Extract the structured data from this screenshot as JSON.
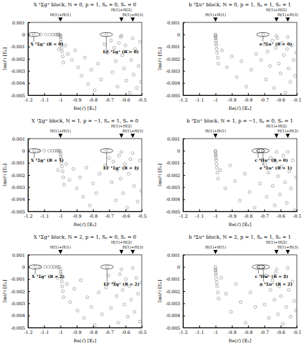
{
  "chart_data": [
    {
      "type": "scatter",
      "title": "X ¹Σg⁺ block, N = 0, p = 1, Sₚ = 0, Sₑ = 0",
      "x_label": "Re(ℰ) [Eₕ]",
      "y_label": "Im(ℰ) [Eₕ]",
      "xlim": [
        -1.2,
        -0.5
      ],
      "xticks": [
        -1.2,
        -1.1,
        -1,
        -0.9,
        -0.8,
        -0.7,
        -0.6,
        -0.5
      ],
      "ylim": [
        -0.005,
        0.001
      ],
      "yticks": [
        0.001,
        0,
        -0.001,
        -0.002,
        -0.003,
        -0.004,
        -0.005
      ],
      "series": [
        {
          "color": "#444444",
          "marker": "circle",
          "x": [
            -1.164,
            -1.12,
            -1.09,
            -1.065,
            -1.045,
            -1.03,
            -1.018,
            -1.01,
            -1.004,
            -1.0,
            -0.999,
            -0.998,
            -0.997,
            -0.995,
            -0.993,
            -0.99,
            -0.986,
            -0.982,
            -1.01,
            -0.97,
            -0.955,
            -0.93,
            -0.91,
            -0.89,
            -0.87,
            -0.85,
            -0.83,
            -0.81,
            -0.79,
            -0.77,
            -0.75,
            -0.7178,
            -0.73,
            -0.71,
            -0.69,
            -0.68,
            -0.67,
            -0.66,
            -0.65,
            -0.64,
            -0.63,
            -0.625,
            -0.62,
            -0.61,
            -0.6,
            -0.595,
            -0.585,
            -0.575,
            -0.565,
            -0.556,
            -0.55,
            -0.54,
            -0.53,
            -0.52,
            -0.51,
            -0.505
          ],
          "values": [
            0,
            0,
            0,
            0,
            0,
            0,
            0,
            0,
            0,
            -0.0001,
            -0.0002,
            -0.0004,
            -0.0006,
            -0.0008,
            -0.0011,
            -0.0014,
            -0.0018,
            -0.0023,
            -0.0012,
            -0.0009,
            -0.0016,
            -0.0021,
            -0.0013,
            -0.0027,
            -0.0034,
            -0.0019,
            -0.0041,
            -0.0029,
            -0.0046,
            -0.0024,
            -0.0037,
            0,
            -0.0008,
            -0.0015,
            -0.0005,
            -0.0031,
            -0.0011,
            -0.0022,
            -0.0043,
            -0.0007,
            -0.0002,
            -0.0001,
            -0.0017,
            -0.0028,
            -0.0009,
            -0.0038,
            -0.0014,
            -0.0048,
            -0.0021,
            -0.0003,
            -0.0033,
            -0.0012,
            -0.0044,
            -0.0026,
            -0.0006,
            -0.0039
          ]
        }
      ],
      "thresholds": [
        {
          "label": "H(1)+H(1)",
          "x": -1.0
        },
        {
          "label": "H(1)+H(2)",
          "x": -0.625
        },
        {
          "label": "H(1)+H(3)",
          "x": -0.5556
        }
      ],
      "annotations": [
        {
          "text": "X ¹Σg⁺ (R = 0)",
          "x": -1.164,
          "y": 0
        },
        {
          "text": "EF ¹Σg⁺ (R = 0)",
          "x": -0.7178,
          "y": 0
        }
      ]
    },
    {
      "type": "scatter",
      "title": "b ³Σu⁺ block, N = 0, p = 1, Sₚ = 1, Sₑ = 1",
      "x_label": "Re(ℰ) [Eₕ]",
      "y_label": "Im(ℰ) [Eₕ]",
      "xlim": [
        -1.2,
        -0.5
      ],
      "xticks": [
        -1.2,
        -1.1,
        -1,
        -0.9,
        -0.8,
        -0.7,
        -0.6,
        -0.5
      ],
      "ylim": [
        -0.005,
        0.001
      ],
      "yticks": [
        0.001,
        0,
        -0.001,
        -0.002,
        -0.003,
        -0.004,
        -0.005
      ],
      "series": [
        {
          "color": "#444444",
          "marker": "circle",
          "x": [
            -1.0,
            -1.0,
            -0.999,
            -0.999,
            -0.998,
            -0.997,
            -0.995,
            -0.993,
            -0.99,
            -0.986,
            -0.982,
            -0.96,
            -0.93,
            -0.9,
            -0.87,
            -0.84,
            -0.81,
            -0.78,
            -0.75,
            -0.708,
            -0.72,
            -0.7,
            -0.69,
            -0.68,
            -0.665,
            -0.65,
            -0.64,
            -0.63,
            -0.625,
            -0.62,
            -0.61,
            -0.6,
            -0.59,
            -0.58,
            -0.57,
            -0.56,
            -0.556,
            -0.55,
            -0.54,
            -0.53,
            -0.52,
            -0.51,
            -0.503
          ],
          "values": [
            0,
            -0.0001,
            -0.0002,
            -0.0003,
            -0.0005,
            -0.0007,
            -0.0009,
            -0.0012,
            -0.0015,
            -0.0019,
            -0.0024,
            -0.0013,
            -0.0027,
            -0.0018,
            -0.0035,
            -0.0022,
            -0.0043,
            -0.0029,
            -0.0016,
            0,
            -0.0021,
            -0.0008,
            -0.0037,
            -0.0014,
            -0.0026,
            -0.0005,
            -0.0044,
            -0.0011,
            -0.0001,
            -0.0003,
            -0.0024,
            -0.0032,
            -0.0007,
            -0.0017,
            -0.0048,
            -0.0012,
            -0.0002,
            -0.0028,
            -0.0039,
            -0.0009,
            -0.0021,
            -0.0034,
            -0.0015
          ]
        }
      ],
      "thresholds": [
        {
          "label": "H(1)+H(1)",
          "x": -1.0
        },
        {
          "label": "H(1)+H(2)",
          "x": -0.625
        },
        {
          "label": "H(1)+H(3)",
          "x": -0.5556
        }
      ],
      "annotations": [
        {
          "text": "e ³Σu⁺ (R = 0)",
          "x": -0.708,
          "y": 0
        }
      ]
    },
    {
      "type": "scatter",
      "title": "X ¹Σg⁺ block, N = 1, p = −1, Sₚ = 1, Sₑ = 0",
      "x_label": "Re(ℰ) [Eₕ]",
      "y_label": "Im(ℰ) [Eₕ]",
      "xlim": [
        -1.2,
        -0.5
      ],
      "xticks": [
        -1.2,
        -1.1,
        -1,
        -0.9,
        -0.8,
        -0.7,
        -0.6,
        -0.5
      ],
      "ylim": [
        -0.005,
        0.001
      ],
      "yticks": [
        0.001,
        0,
        -0.001,
        -0.002,
        -0.003,
        -0.004,
        -0.005
      ],
      "series": [
        {
          "color": "#444444",
          "marker": "circle",
          "x": [
            -1.1612,
            -1.13,
            -1.1,
            -1.07,
            -1.05,
            -1.035,
            -1.022,
            -1.012,
            -1.005,
            -1.0,
            -0.999,
            -0.998,
            -0.996,
            -0.994,
            -0.991,
            -0.987,
            -0.983,
            -0.978,
            -1.015,
            -0.965,
            -0.945,
            -0.92,
            -0.9,
            -0.88,
            -0.86,
            -0.84,
            -0.82,
            -0.8,
            -0.78,
            -0.76,
            -0.7163,
            -0.725,
            -0.7,
            -0.685,
            -0.675,
            -0.66,
            -0.65,
            -0.64,
            -0.63,
            -0.625,
            -0.615,
            -0.605,
            -0.59,
            -0.58,
            -0.57,
            -0.556,
            -0.548,
            -0.535,
            -0.525,
            -0.512,
            -0.503
          ],
          "values": [
            0,
            0,
            0,
            0,
            0,
            0,
            0,
            0,
            0,
            -0.0001,
            -0.0003,
            -0.0005,
            -0.0007,
            -0.001,
            -0.0013,
            -0.0017,
            -0.0022,
            -0.0028,
            -0.0016,
            -0.0011,
            -0.0024,
            -0.0015,
            -0.0031,
            -0.0022,
            -0.0038,
            -0.0014,
            -0.0045,
            -0.0027,
            -0.0035,
            -0.0019,
            0,
            -0.0012,
            -0.0006,
            -0.0026,
            -0.0009,
            -0.0041,
            -0.0016,
            -0.0004,
            -0.0023,
            -0.0001,
            -0.0035,
            -0.0011,
            -0.0047,
            -0.0019,
            -0.0007,
            -0.0002,
            -0.0029,
            -0.0015,
            -0.0042,
            -0.0008,
            -0.0033
          ]
        }
      ],
      "thresholds": [
        {
          "label": "H(1)+H(1)",
          "x": -1.0
        },
        {
          "label": "H(1)+H(2)",
          "x": -0.625
        },
        {
          "label": "H(1)+H(3)",
          "x": -0.5556
        }
      ],
      "annotations": [
        {
          "text": "X ¹Σg⁺ (R = 1)",
          "x": -1.1612,
          "y": 0
        },
        {
          "text": "EF ¹Σg⁺ (R = 1)",
          "x": -0.7163,
          "y": 0
        }
      ]
    },
    {
      "type": "scatter",
      "title": "b ³Σu⁺ block, N = 1, p = −1, Sₚ = 0, Sₑ = 1",
      "x_label": "Re(ℰ) [Eₕ]",
      "y_label": "Im(ℰ) [Eₕ]",
      "xlim": [
        -1.2,
        -0.5
      ],
      "xticks": [
        -1.2,
        -1.1,
        -1,
        -0.9,
        -0.8,
        -0.7,
        -0.6,
        -0.5
      ],
      "ylim": [
        -0.005,
        0.001
      ],
      "yticks": [
        0.001,
        0,
        -0.001,
        -0.002,
        -0.003,
        -0.004,
        -0.005
      ],
      "series": [
        {
          "color": "#444444",
          "marker": "circle",
          "x": [
            -1.0,
            -1.0,
            -0.999,
            -0.998,
            -0.997,
            -0.996,
            -0.994,
            -0.991,
            -0.988,
            -0.984,
            -0.97,
            -0.94,
            -0.91,
            -0.88,
            -0.85,
            -0.82,
            -0.79,
            -0.76,
            -0.7378,
            -0.7075,
            -0.725,
            -0.695,
            -0.685,
            -0.675,
            -0.66,
            -0.648,
            -0.636,
            -0.628,
            -0.625,
            -0.615,
            -0.604,
            -0.594,
            -0.583,
            -0.573,
            -0.562,
            -0.556,
            -0.547,
            -0.536,
            -0.525,
            -0.514,
            -0.504
          ],
          "values": [
            0,
            -0.0001,
            -0.0003,
            -0.0004,
            -0.0006,
            -0.0008,
            -0.0011,
            -0.0014,
            -0.0018,
            -0.0023,
            -0.0016,
            -0.0031,
            -0.0012,
            -0.0025,
            -0.0041,
            -0.0019,
            -0.0034,
            -0.0047,
            0,
            0,
            -0.0027,
            -0.0011,
            -0.0038,
            -0.0018,
            -0.0006,
            -0.0029,
            -0.0045,
            -0.0009,
            -0.0001,
            -0.0021,
            -0.0036,
            -0.0013,
            -0.0004,
            -0.0026,
            -0.0043,
            -0.0001,
            -0.0017,
            -0.0031,
            -0.0008,
            -0.0049,
            -0.0022
          ]
        }
      ],
      "thresholds": [
        {
          "label": "H(1)+H(1)",
          "x": -1.0
        },
        {
          "label": "H(1)+H(2)",
          "x": -0.625
        },
        {
          "label": "H(1)+H(3)",
          "x": -0.5556
        }
      ],
      "annotations": [
        {
          "text": "c ³Πu⁺ (R = 0)",
          "x": -0.7378,
          "y": 0
        },
        {
          "text": "e ³Σu⁺ (R = 1)",
          "x": -0.7075,
          "y": 0
        }
      ]
    },
    {
      "type": "scatter",
      "title": "X ¹Σg⁺ block, N = 2, p = 1, Sₚ = 0, Sₑ = 0",
      "x_label": "Re(ℰ) [Eₕ]",
      "y_label": "Im(ℰ) [Eₕ]",
      "xlim": [
        -1.2,
        -0.5
      ],
      "xticks": [
        -1.2,
        -1.1,
        -1,
        -0.9,
        -0.8,
        -0.7,
        -0.6,
        -0.5
      ],
      "ylim": [
        -0.005,
        0.001
      ],
      "yticks": [
        0.001,
        0,
        -0.001,
        -0.002,
        -0.003,
        -0.004,
        -0.005
      ],
      "series": [
        {
          "color": "#444444",
          "marker": "circle",
          "x": [
            -1.1557,
            -1.125,
            -1.095,
            -1.075,
            -1.055,
            -1.04,
            -1.026,
            -1.015,
            -1.006,
            -1.0,
            -0.999,
            -0.997,
            -0.995,
            -0.992,
            -0.989,
            -0.985,
            -0.98,
            -1.02,
            -0.96,
            -0.94,
            -0.915,
            -0.895,
            -0.875,
            -0.855,
            -0.835,
            -0.81,
            -0.79,
            -0.765,
            -0.745,
            -0.7134,
            -0.72,
            -0.705,
            -0.69,
            -0.67,
            -0.655,
            -0.645,
            -0.635,
            -0.625,
            -0.618,
            -0.607,
            -0.597,
            -0.587,
            -0.577,
            -0.566,
            -0.556,
            -0.545,
            -0.533,
            -0.522,
            -0.511,
            -0.502
          ],
          "values": [
            0,
            0,
            0,
            0,
            0,
            0,
            0,
            0,
            0,
            -0.0002,
            -0.0004,
            -0.0006,
            -0.0009,
            -0.0012,
            -0.0016,
            -0.002,
            -0.0025,
            -0.0009,
            -0.0014,
            -0.0029,
            -0.0018,
            -0.0036,
            -0.0011,
            -0.0042,
            -0.0025,
            -0.0033,
            -0.0048,
            -0.0021,
            -0.0039,
            0,
            -0.0017,
            -0.0007,
            -0.0034,
            -0.0013,
            -0.0024,
            -0.0046,
            -0.0006,
            -0.0002,
            -0.0019,
            -0.0031,
            -0.001,
            -0.0041,
            -0.0016,
            -0.0027,
            -0.0001,
            -0.0037,
            -0.0009,
            -0.0022,
            -0.0045,
            -0.0013
          ]
        }
      ],
      "thresholds": [
        {
          "label": "H(1)+H(1)",
          "x": -1.0
        },
        {
          "label": "H(1)+H(2)",
          "x": -0.625
        },
        {
          "label": "H(1)+H(3)",
          "x": -0.5556
        }
      ],
      "annotations": [
        {
          "text": "X ¹Σg⁺ (R = 2)",
          "x": -1.1557,
          "y": 0
        },
        {
          "text": "EF ¹Σg⁺ (R = 2)",
          "x": -0.7134,
          "y": 0
        }
      ]
    },
    {
      "type": "scatter",
      "title": "b ³Σu⁺ block, N = 2, p = 1, Sₚ = 1, Sₑ = 1",
      "x_label": "Re(ℰ) [Eₕ]",
      "y_label": "Im(ℰ) [Eₕ]",
      "xlim": [
        -1.2,
        -0.5
      ],
      "xticks": [
        -1.2,
        -1.1,
        -1,
        -0.9,
        -0.8,
        -0.7,
        -0.6,
        -0.5
      ],
      "ylim": [
        -0.005,
        0.001
      ],
      "yticks": [
        0.001,
        0,
        -0.001,
        -0.002,
        -0.003,
        -0.004,
        -0.005
      ],
      "series": [
        {
          "color": "#444444",
          "marker": "circle",
          "x": [
            -1.0,
            -1.0,
            -0.999,
            -0.998,
            -0.997,
            -0.995,
            -0.993,
            -0.99,
            -0.986,
            -0.981,
            -0.965,
            -0.935,
            -0.905,
            -0.875,
            -0.845,
            -0.815,
            -0.785,
            -0.755,
            -0.7363,
            -0.7054,
            -0.72,
            -0.698,
            -0.688,
            -0.672,
            -0.662,
            -0.65,
            -0.638,
            -0.63,
            -0.625,
            -0.616,
            -0.607,
            -0.597,
            -0.586,
            -0.576,
            -0.565,
            -0.556,
            -0.549,
            -0.538,
            -0.527,
            -0.516,
            -0.506
          ],
          "values": [
            0,
            -0.0002,
            -0.0003,
            -0.0005,
            -0.0007,
            -0.001,
            -0.0013,
            -0.0016,
            -0.0021,
            -0.0026,
            -0.0009,
            -0.0022,
            -0.0037,
            -0.0014,
            -0.0029,
            -0.0046,
            -0.0021,
            -0.0033,
            0,
            0,
            -0.0015,
            -0.0031,
            -0.0007,
            -0.0042,
            -0.0019,
            -0.0011,
            -0.0027,
            -0.0005,
            -0.0002,
            -0.0039,
            -0.0016,
            -0.0024,
            -0.0047,
            -0.0008,
            -0.0033,
            -0.0001,
            -0.0019,
            -0.0041,
            -0.0012,
            -0.0028,
            -0.0036
          ]
        }
      ],
      "thresholds": [
        {
          "label": "H(1)+H(1)",
          "x": -1.0
        },
        {
          "label": "H(1)+H(2)",
          "x": -0.625
        },
        {
          "label": "H(1)+H(3)",
          "x": -0.5556
        }
      ],
      "annotations": [
        {
          "text": "c ³Πu⁺ (R = 1)",
          "x": -0.7363,
          "y": 0
        },
        {
          "text": "e ³Σu⁺ (R = 2)",
          "x": -0.7054,
          "y": 0
        }
      ]
    }
  ]
}
